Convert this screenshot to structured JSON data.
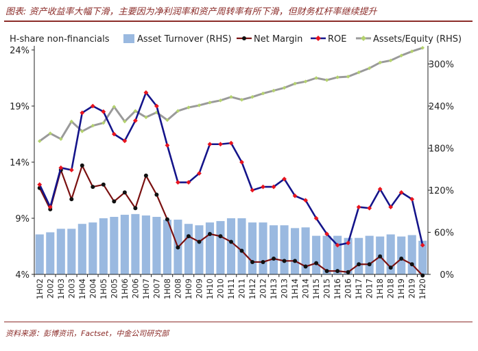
{
  "title": "图表: 资产收益率大幅下滑，主要因为净利润率和资产周转率有所下滑，但财务杠杆率继续提升",
  "source": "资料来源：彭博资讯，Factset，中金公司研究部",
  "colors": {
    "title": "#8b2b28",
    "bars": "#9ab9e0",
    "net_margin": "#7a1010",
    "roe": "#14148a",
    "roe_marker": "#e8141e",
    "assets_equity": "#9a9a9a",
    "assets_equity_marker": "#b4d26e"
  },
  "chart_data": {
    "type": "bar+line",
    "legend": {
      "title": "H-share non-financials",
      "placement": "top",
      "items": [
        "Asset Turnover (RHS)",
        "Net Margin",
        "ROE",
        "Assets/Equity (RHS)"
      ]
    },
    "categories": [
      "1H02",
      "2002",
      "1H03",
      "2003",
      "1H04",
      "2004",
      "1H05",
      "2005",
      "1H06",
      "2006",
      "1H07",
      "2007",
      "1H08",
      "2008",
      "1H09",
      "2009",
      "1H10",
      "2010",
      "1H11",
      "2011",
      "1H12",
      "2012",
      "1H13",
      "2013",
      "1H14",
      "2014",
      "1H15",
      "2015",
      "1H16",
      "2016",
      "1H17",
      "2017",
      "1H18",
      "2018",
      "1H19",
      "2019",
      "1H20"
    ],
    "y_left": {
      "min": 4,
      "max": 24,
      "ticks": [
        "4%",
        "9%",
        "14%",
        "19%",
        "24%"
      ]
    },
    "y_right": {
      "min": 0,
      "max": 320,
      "ticks": [
        "0%",
        "60%",
        "120%",
        "180%",
        "240%",
        "300%"
      ]
    },
    "series": [
      {
        "name": "Asset Turnover (RHS)",
        "axis": "right",
        "kind": "bar",
        "values": [
          57,
          60,
          65,
          65,
          72,
          74,
          80,
          82,
          85,
          86,
          84,
          82,
          78,
          78,
          72,
          70,
          74,
          76,
          80,
          80,
          74,
          74,
          70,
          70,
          66,
          67,
          55,
          55,
          55,
          52,
          52,
          55,
          54,
          57,
          54,
          56,
          48
        ]
      },
      {
        "name": "Net Margin",
        "axis": "left",
        "kind": "line",
        "values": [
          11.7,
          9.8,
          13.3,
          10.7,
          13.7,
          11.8,
          12.0,
          10.5,
          11.3,
          9.9,
          12.8,
          11.1,
          8.9,
          6.4,
          7.4,
          6.9,
          7.6,
          7.4,
          6.9,
          6.1,
          5.1,
          5.1,
          5.4,
          5.2,
          5.2,
          4.7,
          5.0,
          4.3,
          4.3,
          4.2,
          4.9,
          4.9,
          5.6,
          4.6,
          5.4,
          4.9,
          3.9
        ]
      },
      {
        "name": "ROE",
        "axis": "left",
        "kind": "line",
        "values": [
          12.0,
          10.0,
          13.5,
          13.3,
          18.4,
          19.0,
          18.5,
          16.5,
          15.9,
          17.7,
          20.2,
          19.0,
          15.5,
          12.2,
          12.2,
          13.0,
          15.6,
          15.6,
          15.7,
          14.0,
          11.5,
          11.8,
          11.8,
          12.5,
          11.0,
          10.6,
          9.0,
          7.6,
          6.6,
          6.8,
          10.0,
          9.9,
          11.6,
          10.0,
          11.3,
          10.7,
          6.6
        ]
      },
      {
        "name": "Assets/Equity (RHS)",
        "axis": "right",
        "kind": "line",
        "values": [
          190,
          201,
          193,
          218,
          204,
          212,
          216,
          239,
          218,
          233,
          224,
          231,
          220,
          233,
          238,
          241,
          245,
          248,
          253,
          249,
          253,
          258,
          262,
          266,
          272,
          275,
          280,
          277,
          281,
          282,
          288,
          294,
          302,
          305,
          312,
          318,
          323
        ]
      }
    ]
  }
}
